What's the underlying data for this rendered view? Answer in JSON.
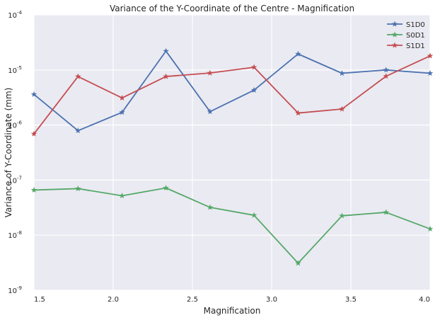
{
  "chart_data": {
    "type": "line",
    "title": "Variance of the Y-Coordinate of the Centre - Magnification",
    "xlabel": "Magnification",
    "ylabel": "Variance of Y-Coordinate (mm)",
    "xlim": [
      1.5,
      4.0
    ],
    "ylim": [
      1e-09,
      0.0001
    ],
    "yscale": "log",
    "grid": true,
    "legend_position": "top-right",
    "x_ticks": [
      "1.5",
      "2.0",
      "2.5",
      "3.0",
      "3.5",
      "4.0"
    ],
    "x_tick_values": [
      1.5,
      2.0,
      2.5,
      3.0,
      3.5,
      4.0
    ],
    "y_ticks": [
      {
        "base": "10",
        "exp": "-9"
      },
      {
        "base": "10",
        "exp": "-8"
      },
      {
        "base": "10",
        "exp": "-7"
      },
      {
        "base": "10",
        "exp": "-6"
      },
      {
        "base": "10",
        "exp": "-5"
      },
      {
        "base": "10",
        "exp": "-4"
      }
    ],
    "y_tick_exponents": [
      -9,
      -8,
      -7,
      -6,
      -5,
      -4
    ],
    "x": [
      1.5,
      1.778,
      2.056,
      2.333,
      2.611,
      2.889,
      3.167,
      3.444,
      3.722,
      4.0
    ],
    "series": [
      {
        "name": "S1D0",
        "color": "#4c72b0",
        "values": [
          3.6e-06,
          7.9e-07,
          1.7e-06,
          2.2e-05,
          1.75e-06,
          4.3e-06,
          1.95e-05,
          8.7e-06,
          1e-05,
          8.7e-06
        ]
      },
      {
        "name": "S0D1",
        "color": "#55a868",
        "values": [
          6.6e-08,
          7e-08,
          5.2e-08,
          7.2e-08,
          3.2e-08,
          2.3e-08,
          3.1e-09,
          2.25e-08,
          2.6e-08,
          1.3e-08
        ]
      },
      {
        "name": "S1D1",
        "color": "#c44e52",
        "values": [
          6.9e-07,
          7.6e-06,
          3.1e-06,
          7.6e-06,
          8.8e-06,
          1.12e-05,
          1.65e-06,
          1.95e-06,
          7.7e-06,
          1.8e-05
        ]
      }
    ]
  }
}
